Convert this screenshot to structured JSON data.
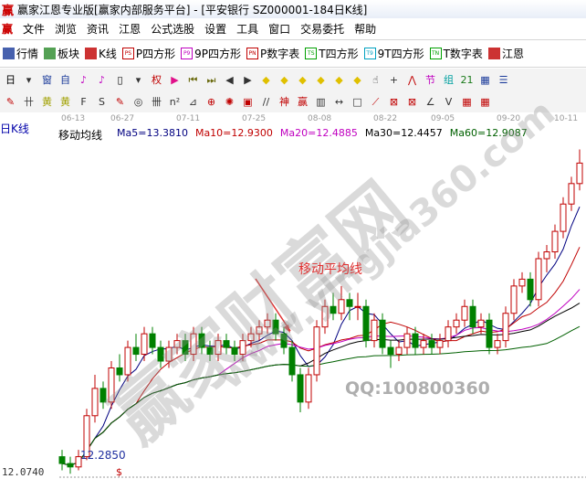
{
  "window": {
    "logo": "赢",
    "title": "赢家江恩专业版[赢家内部服务平台] - [平安银行  SZ000001-184日K线]"
  },
  "menu": {
    "logo": "赢",
    "items": [
      "文件",
      "浏览",
      "资讯",
      "江恩",
      "公式选股",
      "设置",
      "工具",
      "窗口",
      "交易委托",
      "帮助"
    ]
  },
  "toolbar1": [
    {
      "icon": "quote-table-icon",
      "badge": "",
      "label": "行情",
      "color": "#1a3a9a"
    },
    {
      "icon": "sector-blocks-icon",
      "badge": "",
      "label": "板块",
      "color": "#2a8a2a"
    },
    {
      "icon": "kline-icon",
      "badge": "",
      "label": "K线",
      "color": "#c00000"
    },
    {
      "icon": "p-square-icon",
      "badge": "PS",
      "label": "P四方形",
      "color": "#c00000"
    },
    {
      "icon": "9p-square-icon",
      "badge": "P9",
      "label": "9P四方形",
      "color": "#c000c0"
    },
    {
      "icon": "p-number-table-icon",
      "badge": "PN",
      "label": "P数字表",
      "color": "#c00000"
    },
    {
      "icon": "t-square-icon",
      "badge": "TS",
      "label": "T四方形",
      "color": "#00a000"
    },
    {
      "icon": "9t-square-icon",
      "badge": "T9",
      "label": "9T四方形",
      "color": "#00a0c0"
    },
    {
      "icon": "t-number-table-icon",
      "badge": "TN",
      "label": "T数字表",
      "color": "#00a000"
    },
    {
      "icon": "gann-icon",
      "badge": "",
      "label": "江恩",
      "color": "#c00000"
    }
  ],
  "toolbar2": [
    {
      "icon": "period-day-icon",
      "glyph": "日",
      "color": "#000"
    },
    {
      "icon": "dropdown-icon",
      "glyph": "▾",
      "color": "#333"
    },
    {
      "icon": "window-icon",
      "glyph": "窗",
      "color": "#1a3a9a"
    },
    {
      "icon": "self-select-icon",
      "glyph": "自",
      "color": "#1a3a9a"
    },
    {
      "icon": "indicator-3-icon",
      "glyph": "♪",
      "color": "#c000c0"
    },
    {
      "icon": "indicator-9-icon",
      "glyph": "♪",
      "color": "#c000c0"
    },
    {
      "icon": "candle-type-icon",
      "glyph": "▯",
      "color": "#000"
    },
    {
      "icon": "dropdown-icon",
      "glyph": "▾",
      "color": "#333"
    },
    {
      "icon": "rights-icon",
      "glyph": "权",
      "color": "#c00000"
    },
    {
      "icon": "flag-icon",
      "glyph": "▶",
      "color": "#e0108a"
    },
    {
      "icon": "first-icon",
      "glyph": "⏮",
      "color": "#6b6b10"
    },
    {
      "icon": "last-icon",
      "glyph": "⏭",
      "color": "#6b6b10"
    },
    {
      "icon": "left-icon",
      "glyph": "◀",
      "color": "#333"
    },
    {
      "icon": "right-icon",
      "glyph": "▶",
      "color": "#333"
    },
    {
      "icon": "move-left-icon",
      "glyph": "◆",
      "color": "#e0c000"
    },
    {
      "icon": "move-right-icon",
      "glyph": "◆",
      "color": "#e0c000"
    },
    {
      "icon": "expand-icon",
      "glyph": "◆",
      "color": "#e0c000"
    },
    {
      "icon": "shrink-icon",
      "glyph": "◆",
      "color": "#e0c000"
    },
    {
      "icon": "zoom-in-icon",
      "glyph": "◆",
      "color": "#e0c000"
    },
    {
      "icon": "zoom-out-icon",
      "glyph": "◆",
      "color": "#e0c000"
    },
    {
      "icon": "hand-icon",
      "glyph": "☝",
      "color": "#333"
    },
    {
      "icon": "crosshair-icon",
      "glyph": "+",
      "color": "#333"
    },
    {
      "icon": "line-icon",
      "glyph": "⋀",
      "color": "#c00000"
    },
    {
      "icon": "section-icon",
      "glyph": "节",
      "color": "#c000c0"
    },
    {
      "icon": "combo-icon",
      "glyph": "组",
      "color": "#00a0a0"
    },
    {
      "icon": "calendar-icon",
      "glyph": "21",
      "color": "#1a7a1a"
    },
    {
      "icon": "calculator-icon",
      "glyph": "▦",
      "color": "#1a3a9a"
    },
    {
      "icon": "report-icon",
      "glyph": "☰",
      "color": "#1a3a9a"
    }
  ],
  "toolbar3": [
    {
      "icon": "pen-icon",
      "glyph": "✎",
      "color": "#c00000"
    },
    {
      "icon": "parallel-lines-icon",
      "glyph": "卄",
      "color": "#333"
    },
    {
      "icon": "gold-ratio-icon",
      "glyph": "黄",
      "color": "#a0a000"
    },
    {
      "icon": "gold-section-icon",
      "glyph": "黄",
      "color": "#a0a000"
    },
    {
      "icon": "fibonacci-icon",
      "glyph": "F",
      "color": "#333"
    },
    {
      "icon": "wave-icon",
      "glyph": "S",
      "color": "#333"
    },
    {
      "icon": "ruler-icon",
      "glyph": "✎",
      "color": "#c00000"
    },
    {
      "icon": "circle-icon",
      "glyph": "◎",
      "color": "#333"
    },
    {
      "icon": "grid-lines-icon",
      "glyph": "卌",
      "color": "#333"
    },
    {
      "icon": "n2-icon",
      "glyph": "n²",
      "color": "#333"
    },
    {
      "icon": "angle-icon",
      "glyph": "⊿",
      "color": "#333"
    },
    {
      "icon": "target-icon",
      "glyph": "⊕",
      "color": "#c00000"
    },
    {
      "icon": "star-icon",
      "glyph": "✺",
      "color": "#c00000"
    },
    {
      "icon": "square-icon",
      "glyph": "▣",
      "color": "#c00000"
    },
    {
      "icon": "slash-icon",
      "glyph": "//",
      "color": "#333"
    },
    {
      "icon": "god-icon",
      "glyph": "神",
      "color": "#c00000"
    },
    {
      "icon": "win-icon",
      "glyph": "赢",
      "color": "#c00000"
    },
    {
      "icon": "ruler-scale-icon",
      "glyph": "▥",
      "color": "#333"
    },
    {
      "icon": "width-icon",
      "glyph": "↔",
      "color": "#333"
    },
    {
      "icon": "box-icon",
      "glyph": "□",
      "color": "#333"
    },
    {
      "icon": "fan-icon",
      "glyph": "⟋",
      "color": "#c00000"
    },
    {
      "icon": "gann-box-icon",
      "glyph": "⊠",
      "color": "#c00000"
    },
    {
      "icon": "gann-fan-icon",
      "glyph": "⊠",
      "color": "#c00000"
    },
    {
      "icon": "angle-line-icon",
      "glyph": "∠",
      "color": "#333"
    },
    {
      "icon": "v-icon",
      "glyph": "V",
      "color": "#333"
    },
    {
      "icon": "grid-red-icon",
      "glyph": "▦",
      "color": "#c00000"
    },
    {
      "icon": "grid-red2-icon",
      "glyph": "▦",
      "color": "#c00000"
    }
  ],
  "chart_header": {
    "ktype": "日K线",
    "indicator": "移动均线",
    "legend": [
      {
        "text": "Ma5=13.3810",
        "color": "#000080"
      },
      {
        "text": "Ma10=12.9300",
        "color": "#c00000"
      },
      {
        "text": "Ma20=12.4885",
        "color": "#c000c0"
      },
      {
        "text": "Ma30=12.4457",
        "color": "#000000"
      },
      {
        "text": "Ma60=12.9087",
        "color": "#006000"
      }
    ]
  },
  "chart_data": {
    "type": "candlestick",
    "up_color": "#c00000",
    "down_color": "#008000",
    "ylim": [
      12.0,
      16.9
    ],
    "x_ticks": [
      {
        "label": "06-13",
        "index": 1
      },
      {
        "label": "06-27",
        "index": 7
      },
      {
        "label": "07-11",
        "index": 15
      },
      {
        "label": "07-25",
        "index": 23
      },
      {
        "label": "08-08",
        "index": 31
      },
      {
        "label": "08-22",
        "index": 39
      },
      {
        "label": "09-05",
        "index": 46
      },
      {
        "label": "09-20",
        "index": 54
      },
      {
        "label": "10-11",
        "index": 61
      }
    ],
    "ohlc": [
      [
        12.3,
        12.4,
        12.1,
        12.2
      ],
      [
        12.2,
        12.3,
        12.05,
        12.15
      ],
      [
        12.15,
        12.4,
        12.1,
        12.3
      ],
      [
        12.3,
        13.0,
        12.25,
        12.9
      ],
      [
        12.9,
        13.5,
        12.8,
        13.3
      ],
      [
        13.3,
        13.4,
        13.0,
        13.1
      ],
      [
        13.1,
        13.7,
        13.0,
        13.6
      ],
      [
        13.6,
        13.8,
        13.4,
        13.5
      ],
      [
        13.5,
        14.0,
        13.4,
        13.9
      ],
      [
        13.9,
        14.1,
        13.7,
        13.8
      ],
      [
        13.8,
        14.2,
        13.7,
        14.1
      ],
      [
        14.1,
        14.2,
        13.8,
        13.9
      ],
      [
        13.9,
        14.0,
        13.6,
        13.7
      ],
      [
        13.7,
        14.0,
        13.6,
        13.9
      ],
      [
        13.9,
        14.1,
        13.8,
        14.0
      ],
      [
        14.0,
        14.1,
        13.7,
        13.8
      ],
      [
        13.8,
        14.2,
        13.7,
        14.1
      ],
      [
        14.1,
        14.2,
        13.8,
        13.9
      ],
      [
        13.9,
        14.0,
        13.7,
        13.8
      ],
      [
        13.8,
        14.1,
        13.7,
        14.0
      ],
      [
        14.0,
        14.1,
        13.8,
        13.9
      ],
      [
        13.9,
        14.0,
        13.7,
        13.8
      ],
      [
        13.8,
        14.1,
        13.7,
        14.0
      ],
      [
        14.0,
        14.2,
        13.9,
        14.1
      ],
      [
        14.1,
        14.3,
        14.0,
        14.2
      ],
      [
        14.2,
        14.4,
        14.1,
        14.3
      ],
      [
        14.3,
        14.4,
        14.0,
        14.1
      ],
      [
        14.1,
        14.2,
        13.8,
        13.9
      ],
      [
        13.9,
        14.0,
        13.4,
        13.5
      ],
      [
        13.5,
        13.6,
        12.95,
        13.1
      ],
      [
        13.1,
        13.6,
        13.0,
        13.5
      ],
      [
        13.5,
        14.3,
        13.4,
        14.2
      ],
      [
        14.2,
        14.6,
        14.1,
        14.5
      ],
      [
        14.5,
        14.7,
        14.3,
        14.4
      ],
      [
        14.4,
        14.8,
        14.3,
        14.6
      ],
      [
        14.6,
        14.7,
        14.3,
        14.5
      ],
      [
        14.5,
        14.7,
        14.3,
        14.5
      ],
      [
        14.5,
        14.6,
        13.9,
        14.0
      ],
      [
        14.0,
        14.4,
        13.9,
        14.3
      ],
      [
        14.3,
        14.4,
        13.8,
        13.9
      ],
      [
        13.9,
        14.0,
        13.6,
        13.8
      ],
      [
        13.8,
        14.0,
        13.7,
        13.9
      ],
      [
        13.9,
        14.2,
        13.8,
        14.1
      ],
      [
        14.1,
        14.2,
        13.8,
        13.9
      ],
      [
        13.9,
        14.1,
        13.8,
        14.0
      ],
      [
        14.0,
        14.1,
        13.8,
        13.9
      ],
      [
        13.9,
        14.1,
        13.8,
        14.0
      ],
      [
        14.0,
        14.3,
        13.9,
        14.2
      ],
      [
        14.2,
        14.4,
        14.1,
        14.3
      ],
      [
        14.3,
        14.6,
        14.2,
        14.5
      ],
      [
        14.5,
        14.6,
        14.1,
        14.2
      ],
      [
        14.2,
        14.4,
        14.1,
        14.3
      ],
      [
        14.3,
        14.4,
        13.8,
        13.9
      ],
      [
        13.9,
        14.1,
        13.8,
        14.0
      ],
      [
        14.0,
        14.5,
        13.9,
        14.4
      ],
      [
        14.4,
        14.9,
        14.3,
        14.8
      ],
      [
        14.8,
        15.0,
        14.7,
        14.9
      ],
      [
        14.9,
        15.0,
        14.5,
        14.6
      ],
      [
        14.6,
        15.3,
        14.5,
        15.2
      ],
      [
        15.2,
        15.4,
        15.0,
        15.3
      ],
      [
        15.3,
        15.7,
        15.2,
        15.6
      ],
      [
        15.6,
        16.1,
        15.5,
        16.0
      ],
      [
        16.0,
        16.4,
        15.9,
        16.3
      ],
      [
        16.3,
        16.8,
        16.2,
        16.6
      ]
    ],
    "moving_averages": [
      {
        "name": "Ma5",
        "period": 5,
        "color": "#000080"
      },
      {
        "name": "Ma10",
        "period": 10,
        "color": "#c00000"
      },
      {
        "name": "Ma20",
        "period": 20,
        "color": "#c000c0"
      },
      {
        "name": "Ma30",
        "period": 30,
        "color": "#000000"
      },
      {
        "name": "Ma60",
        "period": 60,
        "color": "#006000"
      }
    ],
    "min_label": "12.0740",
    "low_marker": "12.2850",
    "marker": "$",
    "annotation": "移动平均线"
  },
  "watermarks": {
    "brand": "赢家财富网",
    "url": "www.yingjia360.com",
    "qq": "QQ:100800360"
  }
}
